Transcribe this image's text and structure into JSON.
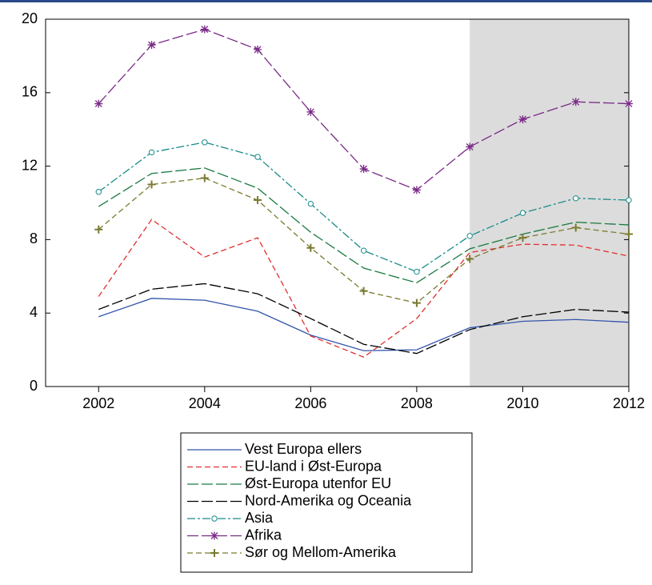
{
  "chart_data": {
    "type": "line",
    "x": [
      2002,
      2003,
      2004,
      2005,
      2006,
      2007,
      2008,
      2009,
      2010,
      2011,
      2012
    ],
    "xlim": [
      2001,
      2012
    ],
    "xticks": [
      2002,
      2004,
      2006,
      2008,
      2010,
      2012
    ],
    "ylim": [
      0,
      20
    ],
    "yticks": [
      0,
      4,
      8,
      12,
      16,
      20
    ],
    "shaded_region": [
      2009,
      2012
    ],
    "series": [
      {
        "name": "Vest Europa ellers",
        "color": "#3355aa",
        "dash": "solid",
        "marker": "none",
        "values": [
          3.8,
          4.8,
          4.7,
          4.1,
          2.8,
          1.95,
          2.0,
          3.2,
          3.55,
          3.65,
          3.5
        ]
      },
      {
        "name": "EU-land i Øst-Europa",
        "color": "#e03030",
        "dash": "dashed",
        "marker": "none",
        "values": [
          4.9,
          9.1,
          7.05,
          8.1,
          2.75,
          1.6,
          3.7,
          7.3,
          7.75,
          7.7,
          7.1
        ]
      },
      {
        "name": "Øst-Europa utenfor EU",
        "color": "#1a7a40",
        "dash": "longdash",
        "marker": "none",
        "values": [
          9.8,
          11.6,
          11.9,
          10.8,
          8.4,
          6.45,
          5.65,
          7.5,
          8.3,
          8.95,
          8.8
        ]
      },
      {
        "name": "Nord-Amerika og Oceania",
        "color": "#000000",
        "dash": "longdash",
        "marker": "none",
        "values": [
          4.2,
          5.3,
          5.6,
          5.05,
          3.7,
          2.3,
          1.8,
          3.1,
          3.8,
          4.2,
          4.05
        ]
      },
      {
        "name": "Asia",
        "color": "#1a8a8a",
        "dash": "dashdot",
        "marker": "circle",
        "values": [
          10.6,
          12.75,
          13.3,
          12.5,
          9.95,
          7.4,
          6.25,
          8.2,
          9.45,
          10.25,
          10.15
        ]
      },
      {
        "name": "Afrika",
        "color": "#7a2a88",
        "dash": "longdash",
        "marker": "star",
        "values": [
          15.4,
          18.6,
          19.45,
          18.35,
          14.95,
          11.85,
          10.7,
          13.05,
          14.55,
          15.5,
          15.4
        ]
      },
      {
        "name": "Sør og Mellom-Amerika",
        "color": "#7a7a30",
        "dash": "dashed",
        "marker": "plus",
        "values": [
          8.55,
          11.0,
          11.35,
          10.15,
          7.55,
          5.2,
          4.55,
          6.95,
          8.1,
          8.65,
          8.3
        ]
      }
    ]
  }
}
